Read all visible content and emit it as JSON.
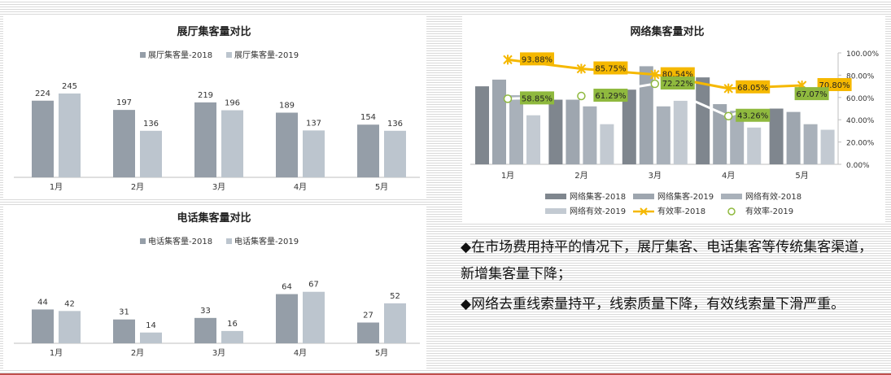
{
  "colors": {
    "series2018": "#959ea8",
    "series2019": "#bcc5ce",
    "net_visit_2018": "#7f868e",
    "net_visit_2019": "#9ea6af",
    "net_valid_2018": "#a9b1ba",
    "net_valid_2019": "#c3cad2",
    "rate2018": "#f5b800",
    "rate2019": "#ffffff",
    "label_box_2018": "#f5b800",
    "label_box_2019": "#8fb93e"
  },
  "chart_data": [
    {
      "type": "bar",
      "title": "展厅集客量对比",
      "categories": [
        "1月",
        "2月",
        "3月",
        "4月",
        "5月"
      ],
      "series": [
        {
          "name": "展厅集客量-2018",
          "values": [
            224,
            197,
            219,
            189,
            154
          ]
        },
        {
          "name": "展厅集客量-2019",
          "values": [
            245,
            136,
            196,
            137,
            136
          ]
        }
      ],
      "ylim": [
        0,
        290
      ],
      "legend": "top-center",
      "grid": false
    },
    {
      "type": "bar",
      "title": "电话集客量对比",
      "categories": [
        "1月",
        "2月",
        "3月",
        "4月",
        "5月"
      ],
      "series": [
        {
          "name": "电话集客量-2018",
          "values": [
            44,
            31,
            33,
            64,
            27
          ]
        },
        {
          "name": "电话集客量-2019",
          "values": [
            42,
            14,
            16,
            67,
            52
          ]
        }
      ],
      "ylim": [
        0,
        90
      ],
      "legend": "top-center",
      "grid": false
    },
    {
      "type": "bar",
      "title": "网络集客量对比",
      "categories": [
        "1月",
        "2月",
        "3月",
        "4月",
        "5月"
      ],
      "series": [
        {
          "name": "网络集客-2018",
          "values": [
            70,
            58,
            67,
            78,
            50
          ]
        },
        {
          "name": "网络集客-2019",
          "values": [
            76,
            58,
            88,
            54,
            47
          ]
        },
        {
          "name": "网络有效-2018",
          "values": [
            62,
            52,
            52,
            48,
            36
          ]
        },
        {
          "name": "网络有效-2019",
          "values": [
            44,
            36,
            57,
            33,
            31
          ]
        }
      ],
      "ylim": [
        0,
        100
      ],
      "lines": [
        {
          "name": "有效率-2018",
          "axis": "right",
          "values": [
            93.88,
            85.75,
            80.54,
            68.05,
            70.8
          ],
          "labels": [
            "93.88%",
            "85.75%",
            "80.54%",
            "68.05%",
            "70.80%"
          ]
        },
        {
          "name": "有效率-2019",
          "axis": "right",
          "values": [
            58.85,
            61.29,
            72.22,
            43.26,
            67.07
          ],
          "labels": [
            "58.85%",
            "61.29%",
            "72.22%",
            "43.26%",
            "67.07%"
          ]
        }
      ],
      "y2lim": [
        0,
        100
      ],
      "y2ticks": [
        "0.00%",
        "20.00%",
        "40.00%",
        "60.00%",
        "80.00%",
        "100.00%"
      ],
      "legend": "bottom",
      "grid": false
    }
  ],
  "notes": [
    "◆在市场费用持平的情况下，展厅集客、电话集客等传统集客渠道，新增集客量下降；",
    "◆网络去重线索量持平，线索质量下降，有效线索量下滑严重。"
  ]
}
